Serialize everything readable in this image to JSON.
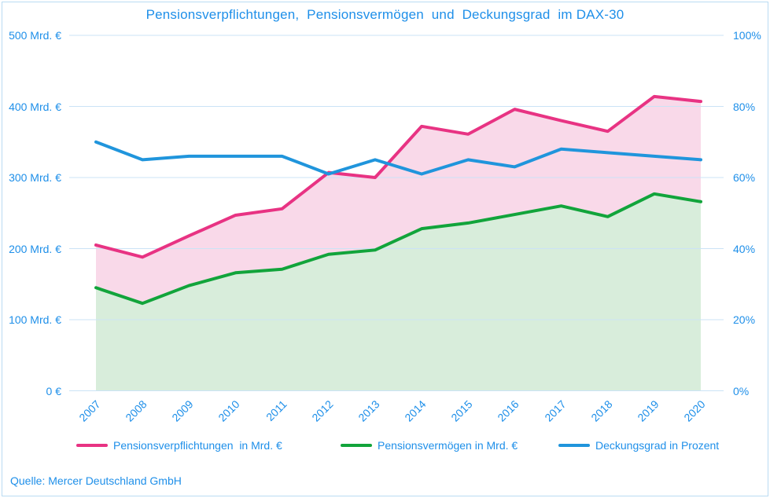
{
  "title": "Pensionsverpflichtungen,  Pensionsvermögen  und  Deckungsgrad  im DAX-30",
  "source": "Quelle: Mercer Deutschland GmbH",
  "colors": {
    "text_blue": "#1e8fe9",
    "gridline": "#cbe3f6",
    "frame_border": "#badbf2",
    "pink_line": "#e83383",
    "pink_fill": "#f9d9e9",
    "green_line": "#12a43b",
    "green_fill": "#d8eddb",
    "blue_line": "#2095dc"
  },
  "left_axis": {
    "max": 500,
    "labels": [
      "500 Mrd. €",
      "400 Mrd. €",
      "300 Mrd. €",
      "200 Mrd. €",
      "100 Mrd. €",
      "0 €"
    ]
  },
  "right_axis": {
    "max": 100,
    "labels": [
      "100%",
      "80%",
      "60%",
      "40%",
      "20%",
      "0%"
    ]
  },
  "chart_data": {
    "type": "area",
    "title": "Pensionsverpflichtungen,  Pensionsvermögen  und  Deckungsgrad  im DAX-30",
    "x": [
      "2007",
      "2008",
      "2009",
      "2010",
      "2011",
      "2012",
      "2013",
      "2014",
      "2015",
      "2016",
      "2017",
      "2018",
      "2019",
      "2020"
    ],
    "series": [
      {
        "id": "pensionsverpflichtungen",
        "name": "Pensionsverpflichtungen  in Mrd. €",
        "axis": "left",
        "color": "#e83383",
        "fill_color": "#f9d9e9",
        "values": [
          205,
          188,
          218,
          247,
          256,
          307,
          300,
          372,
          361,
          396,
          380,
          365,
          414,
          407
        ]
      },
      {
        "id": "pensionsvermoegen",
        "name": "Pensionsvermögen in Mrd. €",
        "axis": "left",
        "color": "#12a43b",
        "fill_color": "#d8eddb",
        "values": [
          145,
          123,
          148,
          166,
          171,
          192,
          198,
          228,
          236,
          248,
          260,
          245,
          277,
          266
        ]
      },
      {
        "id": "deckungsgrad",
        "name": "Deckungsgrad in Prozent",
        "axis": "right",
        "color": "#2095dc",
        "fill_color": null,
        "values": [
          70,
          65,
          66,
          66,
          66,
          61,
          65,
          61,
          65,
          63,
          68,
          67,
          66,
          65
        ]
      }
    ],
    "left_ylim": [
      0,
      500
    ],
    "right_ylim": [
      0,
      100
    ],
    "grid": true,
    "legend_position": "bottom"
  }
}
